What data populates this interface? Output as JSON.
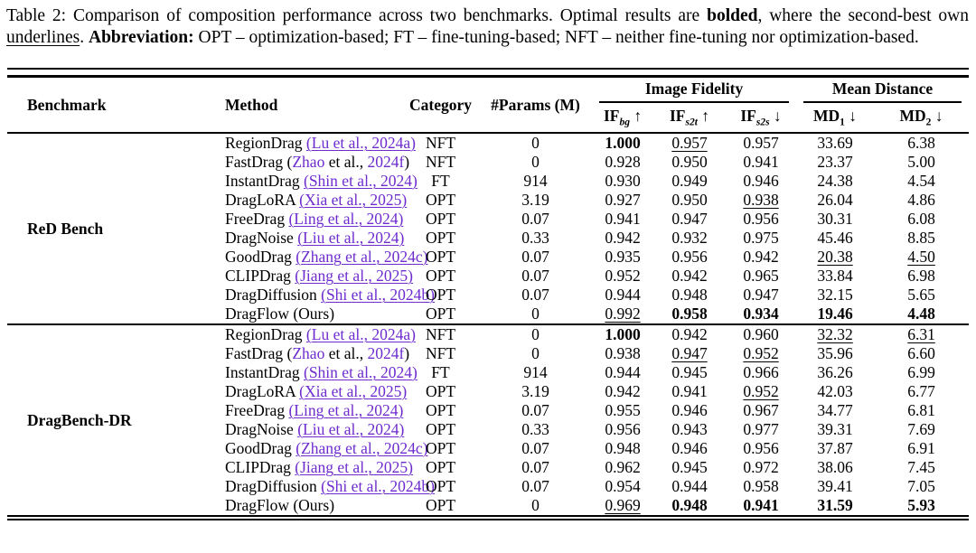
{
  "caption": {
    "segments": [
      {
        "text": "Table 2: Comparison of composition performance across two benchmarks. Optimal results are "
      },
      {
        "text": "bolded",
        "bold": true
      },
      {
        "text": ", where the second-best own "
      },
      {
        "text": "underlines",
        "underline": true
      },
      {
        "text": ". "
      },
      {
        "text": "Abbreviation:",
        "bold": true
      },
      {
        "text": " OPT – optimization-based; FT – fine-tuning-based; NFT – neither fine-tuning nor optimization-based."
      }
    ]
  },
  "table": {
    "citation_color": "#6e2ccf",
    "columns": {
      "benchmark": "Benchmark",
      "method": "Method",
      "category": "Category",
      "params": "#Params (M)",
      "group_image_fidelity": "Image Fidelity",
      "group_mean_distance": "Mean Distance",
      "sub": [
        {
          "base": "IF",
          "sub": "bg",
          "italic": true,
          "arrow": "↑"
        },
        {
          "base": "IF",
          "sub": "s2t",
          "italic": true,
          "arrow": "↑"
        },
        {
          "base": "IF",
          "sub": "s2s",
          "italic": true,
          "arrow": "↓"
        },
        {
          "base": "MD",
          "sub": "1",
          "italic": false,
          "arrow": "↓"
        },
        {
          "base": "MD",
          "sub": "2",
          "italic": false,
          "arrow": "↓"
        }
      ]
    },
    "blocks": [
      {
        "benchmark": "ReD Bench",
        "rows": [
          {
            "method": "RegionDrag",
            "cite": [
              {
                "t": "(Lu et al., 2024a)",
                "purple": true,
                "underline": true
              }
            ],
            "category": "NFT",
            "params": "0",
            "values": [
              {
                "v": "1.000",
                "s": "bold"
              },
              {
                "v": "0.957",
                "s": "underline"
              },
              {
                "v": "0.957"
              },
              {
                "v": "33.69"
              },
              {
                "v": "6.38"
              }
            ]
          },
          {
            "method": "FastDrag",
            "cite": [
              {
                "t": "("
              },
              {
                "t": "Zhao",
                "purple": true
              },
              {
                "t": " et al., "
              },
              {
                "t": "2024f",
                "purple": true
              },
              {
                "t": ")"
              }
            ],
            "category": "NFT",
            "params": "0",
            "values": [
              {
                "v": "0.928"
              },
              {
                "v": "0.950"
              },
              {
                "v": "0.941"
              },
              {
                "v": "23.37"
              },
              {
                "v": "5.00"
              }
            ]
          },
          {
            "method": "InstantDrag",
            "cite": [
              {
                "t": "(Shin et al., 2024)",
                "purple": true,
                "underline": true
              }
            ],
            "category": "FT",
            "params": "914",
            "values": [
              {
                "v": "0.930"
              },
              {
                "v": "0.949"
              },
              {
                "v": "0.946"
              },
              {
                "v": "24.38"
              },
              {
                "v": "4.54"
              }
            ]
          },
          {
            "method": "DragLoRA",
            "cite": [
              {
                "t": "(Xia et al., 2025)",
                "purple": true,
                "underline": true
              }
            ],
            "category": "OPT",
            "params": "3.19",
            "values": [
              {
                "v": "0.927"
              },
              {
                "v": "0.950"
              },
              {
                "v": "0.938",
                "s": "underline"
              },
              {
                "v": "26.04"
              },
              {
                "v": "4.86"
              }
            ]
          },
          {
            "method": "FreeDrag",
            "cite": [
              {
                "t": "(Ling et al., 2024)",
                "purple": true,
                "underline": true
              }
            ],
            "category": "OPT",
            "params": "0.07",
            "values": [
              {
                "v": "0.941"
              },
              {
                "v": "0.947"
              },
              {
                "v": "0.956"
              },
              {
                "v": "30.31"
              },
              {
                "v": "6.08"
              }
            ]
          },
          {
            "method": "DragNoise",
            "cite": [
              {
                "t": "(Liu et al., 2024)",
                "purple": true,
                "underline": true
              }
            ],
            "category": "OPT",
            "params": "0.33",
            "values": [
              {
                "v": "0.942"
              },
              {
                "v": "0.932"
              },
              {
                "v": "0.975"
              },
              {
                "v": "45.46"
              },
              {
                "v": "8.85"
              }
            ]
          },
          {
            "method": "GoodDrag",
            "cite": [
              {
                "t": "(Zhang et al., 2024c)",
                "purple": true,
                "underline": true
              }
            ],
            "category": "OPT",
            "params": "0.07",
            "values": [
              {
                "v": "0.935"
              },
              {
                "v": "0.956"
              },
              {
                "v": "0.942"
              },
              {
                "v": "20.38",
                "s": "underline"
              },
              {
                "v": "4.50",
                "s": "underline"
              }
            ]
          },
          {
            "method": "CLIPDrag",
            "cite": [
              {
                "t": "(Jiang et al., 2025)",
                "purple": true,
                "underline": true
              }
            ],
            "category": "OPT",
            "params": "0.07",
            "values": [
              {
                "v": "0.952"
              },
              {
                "v": "0.942"
              },
              {
                "v": "0.965"
              },
              {
                "v": "33.84"
              },
              {
                "v": "6.98"
              }
            ]
          },
          {
            "method": "DragDiffusion",
            "cite": [
              {
                "t": "(Shi et al., 2024b)",
                "purple": true,
                "underline": true
              }
            ],
            "category": "OPT",
            "params": "0.07",
            "values": [
              {
                "v": "0.944"
              },
              {
                "v": "0.948"
              },
              {
                "v": "0.947"
              },
              {
                "v": "32.15"
              },
              {
                "v": "5.65"
              }
            ]
          },
          {
            "method": "DragFlow",
            "cite": [
              {
                "t": "(Ours)"
              }
            ],
            "category": "OPT",
            "params": "0",
            "values": [
              {
                "v": "0.992",
                "s": "underline"
              },
              {
                "v": "0.958",
                "s": "bold"
              },
              {
                "v": "0.934",
                "s": "bold"
              },
              {
                "v": "19.46",
                "s": "bold"
              },
              {
                "v": "4.48",
                "s": "bold"
              }
            ]
          }
        ]
      },
      {
        "benchmark": "DragBench-DR",
        "rows": [
          {
            "method": "RegionDrag",
            "cite": [
              {
                "t": "(Lu et al., 2024a)",
                "purple": true,
                "underline": true
              }
            ],
            "category": "NFT",
            "params": "0",
            "values": [
              {
                "v": "1.000",
                "s": "bold"
              },
              {
                "v": "0.942"
              },
              {
                "v": "0.960"
              },
              {
                "v": "32.32",
                "s": "underline"
              },
              {
                "v": "6.31",
                "s": "underline"
              }
            ]
          },
          {
            "method": "FastDrag",
            "cite": [
              {
                "t": "("
              },
              {
                "t": "Zhao",
                "purple": true
              },
              {
                "t": " et al., "
              },
              {
                "t": "2024f",
                "purple": true
              },
              {
                "t": ")"
              }
            ],
            "category": "NFT",
            "params": "0",
            "values": [
              {
                "v": "0.938"
              },
              {
                "v": "0.947",
                "s": "underline"
              },
              {
                "v": "0.952",
                "s": "underline"
              },
              {
                "v": "35.96"
              },
              {
                "v": "6.60"
              }
            ]
          },
          {
            "method": "InstantDrag",
            "cite": [
              {
                "t": "(Shin et al., 2024)",
                "purple": true,
                "underline": true
              }
            ],
            "category": "FT",
            "params": "914",
            "values": [
              {
                "v": "0.944"
              },
              {
                "v": "0.945"
              },
              {
                "v": "0.966"
              },
              {
                "v": "36.26"
              },
              {
                "v": "6.99"
              }
            ]
          },
          {
            "method": "DragLoRA",
            "cite": [
              {
                "t": "(Xia et al., 2025)",
                "purple": true,
                "underline": true
              }
            ],
            "category": "OPT",
            "params": "3.19",
            "values": [
              {
                "v": "0.942"
              },
              {
                "v": "0.941"
              },
              {
                "v": "0.952",
                "s": "underline"
              },
              {
                "v": "42.03"
              },
              {
                "v": "6.77"
              }
            ]
          },
          {
            "method": "FreeDrag",
            "cite": [
              {
                "t": "(Ling et al., 2024)",
                "purple": true,
                "underline": true
              }
            ],
            "category": "OPT",
            "params": "0.07",
            "values": [
              {
                "v": "0.955"
              },
              {
                "v": "0.946"
              },
              {
                "v": "0.967"
              },
              {
                "v": "34.77"
              },
              {
                "v": "6.81"
              }
            ]
          },
          {
            "method": "DragNoise",
            "cite": [
              {
                "t": "(Liu et al., 2024)",
                "purple": true,
                "underline": true
              }
            ],
            "category": "OPT",
            "params": "0.33",
            "values": [
              {
                "v": "0.956"
              },
              {
                "v": "0.943"
              },
              {
                "v": "0.977"
              },
              {
                "v": "39.31"
              },
              {
                "v": "7.69"
              }
            ]
          },
          {
            "method": "GoodDrag",
            "cite": [
              {
                "t": "(Zhang et al., 2024c)",
                "purple": true,
                "underline": true
              }
            ],
            "category": "OPT",
            "params": "0.07",
            "values": [
              {
                "v": "0.948"
              },
              {
                "v": "0.946"
              },
              {
                "v": "0.956"
              },
              {
                "v": "37.87"
              },
              {
                "v": "6.91"
              }
            ]
          },
          {
            "method": "CLIPDrag",
            "cite": [
              {
                "t": "(Jiang et al., 2025)",
                "purple": true,
                "underline": true
              }
            ],
            "category": "OPT",
            "params": "0.07",
            "values": [
              {
                "v": "0.962"
              },
              {
                "v": "0.945"
              },
              {
                "v": "0.972"
              },
              {
                "v": "38.06"
              },
              {
                "v": "7.45"
              }
            ]
          },
          {
            "method": "DragDiffusion",
            "cite": [
              {
                "t": "(Shi et al., 2024b)",
                "purple": true,
                "underline": true
              }
            ],
            "category": "OPT",
            "params": "0.07",
            "values": [
              {
                "v": "0.954"
              },
              {
                "v": "0.944"
              },
              {
                "v": "0.958"
              },
              {
                "v": "39.41"
              },
              {
                "v": "7.05"
              }
            ]
          },
          {
            "method": "DragFlow",
            "cite": [
              {
                "t": "(Ours)"
              }
            ],
            "category": "OPT",
            "params": "0",
            "values": [
              {
                "v": "0.969",
                "s": "underline"
              },
              {
                "v": "0.948",
                "s": "bold"
              },
              {
                "v": "0.941",
                "s": "bold"
              },
              {
                "v": "31.59",
                "s": "bold"
              },
              {
                "v": "5.93",
                "s": "bold"
              }
            ]
          }
        ]
      }
    ]
  }
}
